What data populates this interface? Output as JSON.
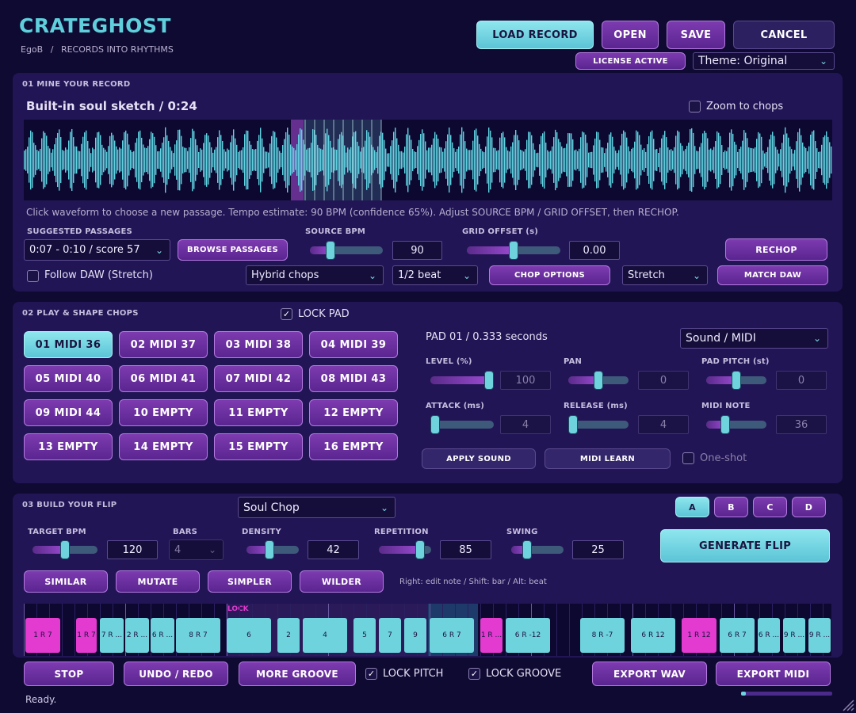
{
  "header": {
    "brand": "CRATEGHOST",
    "breadcrumb_user": "EgoB",
    "breadcrumb_sep": "/",
    "breadcrumb_tagline": "RECORDS INTO RHYTHMS",
    "buttons": {
      "load": "LOAD RECORD",
      "open": "OPEN",
      "save": "SAVE",
      "cancel": "CANCEL"
    },
    "license": "LICENSE ACTIVE",
    "theme": "Theme: Original"
  },
  "mine": {
    "title": "01 MINE YOUR RECORD",
    "record_title": "Built-in soul sketch  /  0:24",
    "zoom_label": "Zoom to chops",
    "hint": "Click waveform to choose a new passage. Tempo estimate: 90 BPM (confidence 65%). Adjust SOURCE BPM / GRID OFFSET, then RECHOP.",
    "suggested_label": "SUGGESTED PASSAGES",
    "suggested_value": "0:07 - 0:10  /  score 57",
    "browse": "BROWSE PASSAGES",
    "source_bpm_label": "SOURCE BPM",
    "source_bpm": "90",
    "source_bpm_level": 0.25,
    "grid_offset_label": "GRID OFFSET (s)",
    "grid_offset": "0.00",
    "grid_offset_level": 0.5,
    "rechop": "RECHOP",
    "follow_daw": "Follow DAW (Stretch)",
    "chop_mode": "Hybrid chops",
    "chop_div": "1/2 beat",
    "chop_options": "CHOP OPTIONS",
    "stretch": "Stretch",
    "match_daw": "MATCH DAW"
  },
  "pads": {
    "title": "02 PLAY & SHAPE CHOPS",
    "lock_pad": "LOCK PAD",
    "items": [
      "01  MIDI 36",
      "02  MIDI 37",
      "03  MIDI 38",
      "04  MIDI 39",
      "05  MIDI 40",
      "06  MIDI 41",
      "07  MIDI 42",
      "08  MIDI 43",
      "09  MIDI 44",
      "10  EMPTY",
      "11  EMPTY",
      "12  EMPTY",
      "13  EMPTY",
      "14  EMPTY",
      "15  EMPTY",
      "16  EMPTY"
    ],
    "pad_info": "PAD 01  /  0.333 seconds",
    "sound_mode": "Sound / MIDI",
    "level_label": "LEVEL (%)",
    "level": "100",
    "level_frac": 1.0,
    "pan_label": "PAN",
    "pan": "0",
    "pan_frac": 0.5,
    "pitch_label": "PAD PITCH (st)",
    "pitch": "0",
    "pitch_frac": 0.5,
    "attack_label": "ATTACK (ms)",
    "attack": "4",
    "attack_frac": 0.0,
    "release_label": "RELEASE (ms)",
    "release": "4",
    "release_frac": 0.0,
    "midi_note_label": "MIDI NOTE",
    "midi_note": "36",
    "midi_note_frac": 0.28,
    "apply_sound": "APPLY SOUND",
    "midi_learn": "MIDI LEARN",
    "one_shot": "One-shot"
  },
  "flip": {
    "title": "03 BUILD YOUR FLIP",
    "style": "Soul Chop",
    "variants": [
      "A",
      "B",
      "C",
      "D"
    ],
    "target_bpm_label": "TARGET BPM",
    "target_bpm": "120",
    "target_bpm_frac": 0.5,
    "bars_label": "BARS",
    "bars": "4",
    "density_label": "DENSITY",
    "density": "42",
    "density_frac": 0.42,
    "repetition_label": "REPETITION",
    "repetition": "85",
    "repetition_frac": 0.85,
    "swing_label": "SWING",
    "swing": "25",
    "swing_frac": 0.25,
    "generate": "GENERATE FLIP",
    "similar": "SIMILAR",
    "mutate": "MUTATE",
    "simpler": "SIMPLER",
    "wilder": "WILDER",
    "hint": "Right: edit note  /  Shift: bar  /  Alt: beat",
    "lock_tag": "LOCK",
    "segments": [
      "1 R 7",
      "1 R 7",
      "7 R ...",
      "2 R ...",
      "6 R ...",
      "8 R 7",
      "6",
      "2",
      "4",
      "5",
      "7",
      "9",
      "6 R 7",
      "1 R ...",
      "6 R -12",
      "8 R -7",
      "6 R 12",
      "1 R 12",
      "6 R 7",
      "6 R ...",
      "9 R ...",
      "9 R ..."
    ]
  },
  "footer": {
    "stop": "STOP",
    "undo_redo": "UNDO / REDO",
    "more_groove": "MORE GROOVE",
    "lock_pitch": "LOCK PITCH",
    "lock_groove": "LOCK GROOVE",
    "export_wav": "EXPORT WAV",
    "export_midi": "EXPORT MIDI",
    "status": "Ready.",
    "progress": 0.05
  },
  "colors": {
    "accent": "#6fd3de",
    "purple": "#7d3bb0",
    "magenta": "#e33ad0",
    "background": "#0f0a32"
  }
}
